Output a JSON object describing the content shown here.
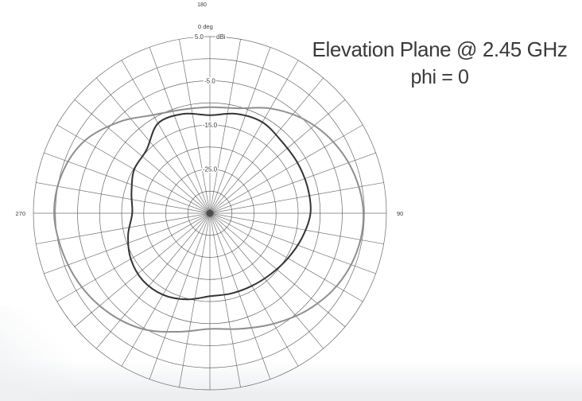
{
  "figure": {
    "title": "Elevation Plane @ 2.45 GHz",
    "subtitle": "phi = 0"
  },
  "chart_data": {
    "type": "line",
    "polar": true,
    "title": "Elevation Plane @ 2.45 GHz",
    "subtitle": "phi = 0",
    "units": "dBi",
    "angle_unit": "deg",
    "grid": true,
    "spoke_step_deg": 10,
    "radial_axis": {
      "max_db": 5,
      "min_db": -35,
      "ring_step_db": 5,
      "outer_tick_label": "5.0",
      "unit_label": "dBi",
      "tick_labels": [
        "-5.0",
        "-15.0",
        "-25.0"
      ],
      "tick_values_db": [
        -5,
        -15,
        -25
      ]
    },
    "angle_labels": {
      "top": "0 deg",
      "right": "90",
      "bottom": "180",
      "left": "270"
    },
    "stray_top_label": "180",
    "series": [
      {
        "name": "measured-pattern-dark",
        "color": "#343434",
        "width": 2,
        "points_deg_db": [
          [
            0,
            -12.8
          ],
          [
            15,
            -11.7
          ],
          [
            30,
            -11.2
          ],
          [
            45,
            -12.0
          ],
          [
            60,
            -12.1
          ],
          [
            75,
            -12.1
          ],
          [
            90,
            -12.2
          ],
          [
            105,
            -13.4
          ],
          [
            120,
            -14.6
          ],
          [
            135,
            -15.5
          ],
          [
            150,
            -16.0
          ],
          [
            165,
            -16.2
          ],
          [
            180,
            -16.2
          ],
          [
            195,
            -14.8
          ],
          [
            210,
            -13.7
          ],
          [
            225,
            -13.5
          ],
          [
            240,
            -14.3
          ],
          [
            255,
            -15.8
          ],
          [
            270,
            -17.4
          ],
          [
            285,
            -16.6
          ],
          [
            300,
            -15.2
          ],
          [
            315,
            -14.7
          ],
          [
            330,
            -11.5
          ],
          [
            345,
            -11.7
          ]
        ]
      },
      {
        "name": "measured-pattern-gray",
        "color": "#8f8f8f",
        "width": 2,
        "points_deg_db": [
          [
            0,
            -11.0
          ],
          [
            15,
            -10.4
          ],
          [
            30,
            -7.6
          ],
          [
            45,
            -4.9
          ],
          [
            60,
            -2.7
          ],
          [
            75,
            -1.1
          ],
          [
            90,
            -0.2
          ],
          [
            105,
            -0.6
          ],
          [
            120,
            -1.9
          ],
          [
            135,
            -3.9
          ],
          [
            150,
            -6.1
          ],
          [
            165,
            -7.9
          ],
          [
            180,
            -8.8
          ],
          [
            195,
            -7.2
          ],
          [
            210,
            -4.7
          ],
          [
            225,
            -2.9
          ],
          [
            240,
            -1.5
          ],
          [
            255,
            -0.5
          ],
          [
            270,
            0.3
          ],
          [
            285,
            -0.3
          ],
          [
            300,
            -2.2
          ],
          [
            315,
            -5.8
          ],
          [
            330,
            -9.3
          ],
          [
            345,
            -10.7
          ]
        ]
      }
    ]
  },
  "colors": {
    "grid": "#4f4f4f",
    "label": "#3b3b3b",
    "title": "#3a3a3a",
    "background": "#ffffff"
  }
}
